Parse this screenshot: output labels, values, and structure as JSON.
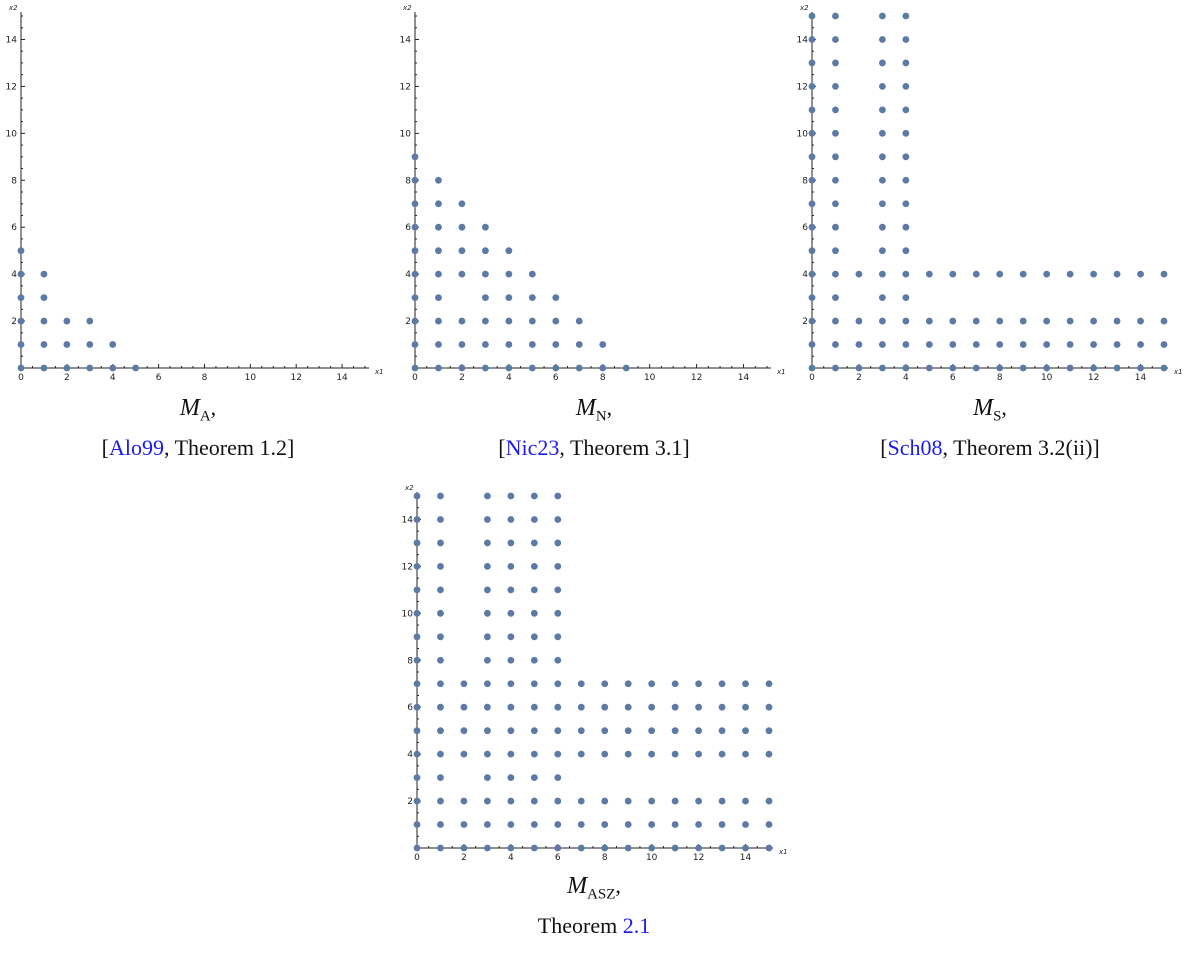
{
  "colors": {
    "dot": "#5b7aa6",
    "link": "#1a1aee",
    "axis": "#222222"
  },
  "chart_data": [
    {
      "type": "scatter",
      "id": "MA",
      "xlabel": "x1",
      "ylabel": "x2",
      "xlim": [
        0,
        15
      ],
      "ylim": [
        0,
        15
      ],
      "xticks": [
        0,
        2,
        4,
        6,
        8,
        10,
        12,
        14
      ],
      "yticks": [
        2,
        4,
        6,
        8,
        10,
        12,
        14
      ],
      "grid": false,
      "caption": {
        "symbol": "M",
        "sub": "A",
        "punct": ",",
        "open": "[",
        "ref": "Alo99",
        "rest": ", Theorem 1.2]"
      },
      "columns": [
        {
          "x": 0,
          "y": [
            0,
            1,
            2,
            3,
            4,
            5
          ]
        },
        {
          "x": 1,
          "y": [
            0,
            1,
            2,
            3,
            4
          ]
        },
        {
          "x": 2,
          "y": [
            0,
            1,
            2
          ]
        },
        {
          "x": 3,
          "y": [
            0,
            1,
            2
          ]
        },
        {
          "x": 4,
          "y": [
            0,
            1
          ]
        },
        {
          "x": 5,
          "y": [
            0
          ]
        }
      ]
    },
    {
      "type": "scatter",
      "id": "MN",
      "xlabel": "x1",
      "ylabel": "x2",
      "xlim": [
        0,
        15
      ],
      "ylim": [
        0,
        15
      ],
      "xticks": [
        0,
        2,
        4,
        6,
        8,
        10,
        12,
        14
      ],
      "yticks": [
        2,
        4,
        6,
        8,
        10,
        12,
        14
      ],
      "grid": false,
      "caption": {
        "symbol": "M",
        "sub": "N",
        "punct": ",",
        "open": "[",
        "ref": "Nic23",
        "rest": ", Theorem 3.1]"
      },
      "columns": [
        {
          "x": 0,
          "y": [
            0,
            1,
            2,
            3,
            4,
            5,
            6,
            7,
            8,
            9
          ]
        },
        {
          "x": 1,
          "y": [
            0,
            1,
            2,
            3,
            4,
            5,
            6,
            7,
            8
          ]
        },
        {
          "x": 2,
          "y": [
            0,
            1,
            2,
            4,
            5,
            6,
            7
          ]
        },
        {
          "x": 3,
          "y": [
            0,
            1,
            2,
            3,
            4,
            5,
            6
          ]
        },
        {
          "x": 4,
          "y": [
            0,
            1,
            2,
            3,
            4,
            5
          ]
        },
        {
          "x": 5,
          "y": [
            0,
            1,
            2,
            3,
            4
          ]
        },
        {
          "x": 6,
          "y": [
            0,
            1,
            2,
            3
          ]
        },
        {
          "x": 7,
          "y": [
            0,
            1,
            2
          ]
        },
        {
          "x": 8,
          "y": [
            0,
            1
          ]
        },
        {
          "x": 9,
          "y": [
            0
          ]
        }
      ]
    },
    {
      "type": "scatter",
      "id": "MS",
      "xlabel": "x1",
      "ylabel": "x2",
      "xlim": [
        0,
        15
      ],
      "ylim": [
        0,
        15
      ],
      "xticks": [
        0,
        2,
        4,
        6,
        8,
        10,
        12,
        14
      ],
      "yticks": [
        2,
        4,
        6,
        8,
        10,
        12,
        14
      ],
      "grid": false,
      "caption": {
        "symbol": "M",
        "sub": "S",
        "punct": ",",
        "open": "[",
        "ref": "Sch08",
        "rest": ", Theorem 3.2(ii)]"
      },
      "columns": [
        {
          "x": 0,
          "y": [
            0,
            1,
            2,
            3,
            4,
            5,
            6,
            7,
            8,
            9,
            10,
            11,
            12,
            13,
            14,
            15
          ]
        },
        {
          "x": 1,
          "y": [
            0,
            1,
            2,
            3,
            4,
            5,
            6,
            7,
            8,
            9,
            10,
            11,
            12,
            13,
            14,
            15
          ]
        },
        {
          "x": 2,
          "y": [
            0,
            1,
            2,
            4
          ]
        },
        {
          "x": 3,
          "y": [
            0,
            1,
            2,
            3,
            4,
            5,
            6,
            7,
            8,
            9,
            10,
            11,
            12,
            13,
            14,
            15
          ]
        },
        {
          "x": 4,
          "y": [
            0,
            1,
            2,
            3,
            4,
            5,
            6,
            7,
            8,
            9,
            10,
            11,
            12,
            13,
            14,
            15
          ]
        },
        {
          "x": 5,
          "y": [
            0,
            1,
            2,
            4
          ]
        },
        {
          "x": 6,
          "y": [
            0,
            1,
            2,
            4
          ]
        },
        {
          "x": 7,
          "y": [
            0,
            1,
            2,
            4
          ]
        },
        {
          "x": 8,
          "y": [
            0,
            1,
            2,
            4
          ]
        },
        {
          "x": 9,
          "y": [
            0,
            1,
            2,
            4
          ]
        },
        {
          "x": 10,
          "y": [
            0,
            1,
            2,
            4
          ]
        },
        {
          "x": 11,
          "y": [
            0,
            1,
            2,
            4
          ]
        },
        {
          "x": 12,
          "y": [
            0,
            1,
            2,
            4
          ]
        },
        {
          "x": 13,
          "y": [
            0,
            1,
            2,
            4
          ]
        },
        {
          "x": 14,
          "y": [
            0,
            1,
            2,
            4
          ]
        },
        {
          "x": 15,
          "y": [
            0,
            1,
            2,
            4
          ]
        }
      ]
    },
    {
      "type": "scatter",
      "id": "MASZ",
      "xlabel": "x1",
      "ylabel": "x2",
      "xlim": [
        0,
        15
      ],
      "ylim": [
        0,
        15
      ],
      "xticks": [
        0,
        2,
        4,
        6,
        8,
        10,
        12,
        14
      ],
      "yticks": [
        2,
        4,
        6,
        8,
        10,
        12,
        14
      ],
      "grid": false,
      "caption": {
        "symbol": "M",
        "sub": "ASZ",
        "punct": ",",
        "open": "",
        "ref": "2.1",
        "rest": "",
        "prefix": "Theorem "
      },
      "columns": [
        {
          "x": 0,
          "y": [
            0,
            1,
            2,
            3,
            4,
            5,
            6,
            7,
            8,
            9,
            10,
            11,
            12,
            13,
            14,
            15
          ]
        },
        {
          "x": 1,
          "y": [
            0,
            1,
            2,
            3,
            4,
            5,
            6,
            7,
            8,
            9,
            10,
            11,
            12,
            13,
            14,
            15
          ]
        },
        {
          "x": 2,
          "y": [
            0,
            1,
            2,
            4,
            5,
            6,
            7
          ]
        },
        {
          "x": 3,
          "y": [
            0,
            1,
            2,
            3,
            4,
            5,
            6,
            7,
            8,
            9,
            10,
            11,
            12,
            13,
            14,
            15
          ]
        },
        {
          "x": 4,
          "y": [
            0,
            1,
            2,
            3,
            4,
            5,
            6,
            7,
            8,
            9,
            10,
            11,
            12,
            13,
            14,
            15
          ]
        },
        {
          "x": 5,
          "y": [
            0,
            1,
            2,
            3,
            4,
            5,
            6,
            7,
            8,
            9,
            10,
            11,
            12,
            13,
            14,
            15
          ]
        },
        {
          "x": 6,
          "y": [
            0,
            1,
            2,
            3,
            4,
            5,
            6,
            7,
            8,
            9,
            10,
            11,
            12,
            13,
            14,
            15
          ]
        },
        {
          "x": 7,
          "y": [
            0,
            1,
            2,
            4,
            5,
            6,
            7
          ]
        },
        {
          "x": 8,
          "y": [
            0,
            1,
            2,
            4,
            5,
            6,
            7
          ]
        },
        {
          "x": 9,
          "y": [
            0,
            1,
            2,
            4,
            5,
            6,
            7
          ]
        },
        {
          "x": 10,
          "y": [
            0,
            1,
            2,
            4,
            5,
            6,
            7
          ]
        },
        {
          "x": 11,
          "y": [
            0,
            1,
            2,
            4,
            5,
            6,
            7
          ]
        },
        {
          "x": 12,
          "y": [
            0,
            1,
            2,
            4,
            5,
            6,
            7
          ]
        },
        {
          "x": 13,
          "y": [
            0,
            1,
            2,
            4,
            5,
            6,
            7
          ]
        },
        {
          "x": 14,
          "y": [
            0,
            1,
            2,
            4,
            5,
            6,
            7
          ]
        },
        {
          "x": 15,
          "y": [
            0,
            1,
            2,
            4,
            5,
            6,
            7
          ]
        }
      ]
    }
  ]
}
